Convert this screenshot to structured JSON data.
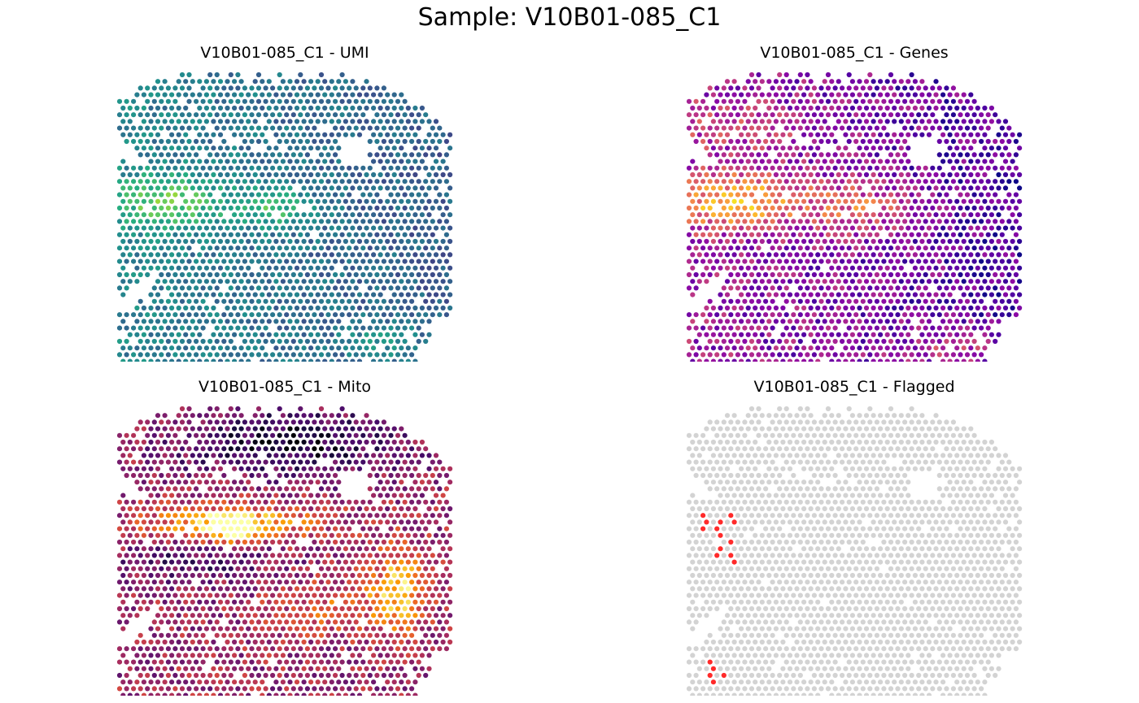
{
  "figure": {
    "title": "Sample: V10B01-085_C1"
  },
  "chart_data": [
    {
      "type": "scatter",
      "title": "V10B01-085_C1 - UMI",
      "metric": "UMI",
      "colormap": "viridis",
      "xlabel": "",
      "ylabel": "",
      "grid": false,
      "axes_visible": false,
      "legend": "none"
    },
    {
      "type": "scatter",
      "title": "V10B01-085_C1 - Genes",
      "metric": "Genes",
      "colormap": "plasma",
      "xlabel": "",
      "ylabel": "",
      "grid": false,
      "axes_visible": false,
      "legend": "none"
    },
    {
      "type": "scatter",
      "title": "V10B01-085_C1 - Mito",
      "metric": "Mito",
      "colormap": "inferno",
      "xlabel": "",
      "ylabel": "",
      "grid": false,
      "axes_visible": false,
      "legend": "none"
    },
    {
      "type": "scatter",
      "title": "V10B01-085_C1 - Flagged",
      "metric": "Flagged",
      "colors": {
        "not_flagged": "#d3d3d3",
        "flagged": "#ff2a2a"
      },
      "xlabel": "",
      "ylabel": "",
      "grid": false,
      "axes_visible": false,
      "legend": "none",
      "flagged_spots": [
        [
          2,
          16
        ],
        [
          2,
          17
        ],
        [
          2,
          18
        ],
        [
          4,
          17
        ],
        [
          4,
          18
        ],
        [
          4,
          19
        ],
        [
          4,
          20
        ],
        [
          4,
          21
        ],
        [
          4,
          22
        ],
        [
          6,
          16
        ],
        [
          6,
          17
        ],
        [
          6,
          20
        ],
        [
          6,
          22
        ],
        [
          6,
          23
        ],
        [
          3,
          38
        ],
        [
          3,
          39
        ],
        [
          3,
          40
        ],
        [
          3,
          41
        ],
        [
          5,
          40
        ]
      ]
    }
  ]
}
